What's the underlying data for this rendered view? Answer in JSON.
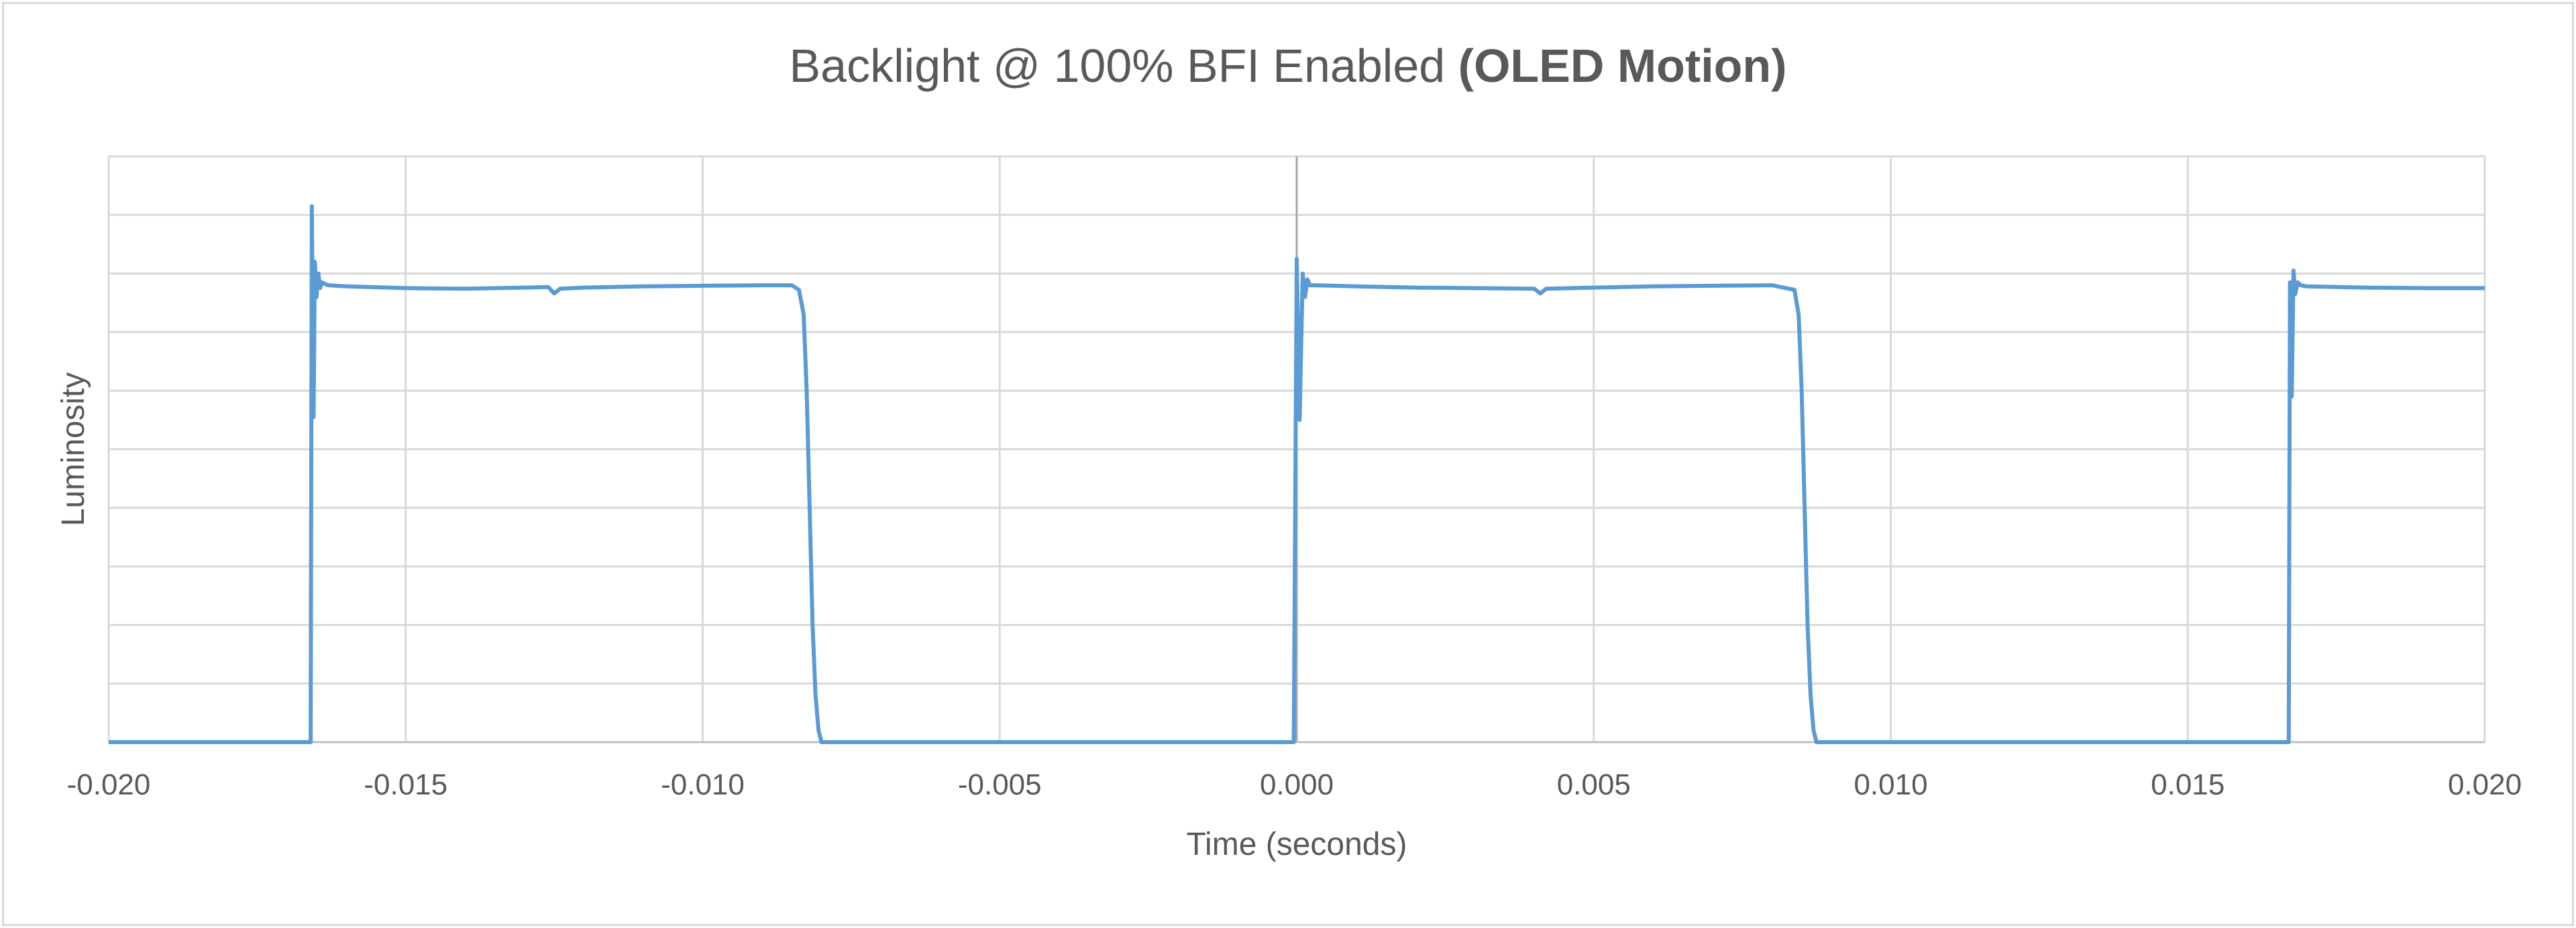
{
  "chart_data": {
    "type": "line",
    "title": "Backlight @ 100% BFI Enabled",
    "title_bold": "(OLED Motion)",
    "xlabel": "Time (seconds)",
    "ylabel": "Luminosity",
    "xlim": [
      -0.02,
      0.02
    ],
    "ylim": [
      0,
      10
    ],
    "x_ticks": [
      "-0.020",
      "-0.015",
      "-0.010",
      "-0.005",
      "0.000",
      "0.005",
      "0.010",
      "0.015",
      "0.020"
    ],
    "grid": true,
    "legend": "none",
    "series": [
      {
        "color": "#5b9bd5",
        "x": [
          -0.02,
          -0.0166,
          -0.01658,
          -0.01655,
          -0.01653,
          -0.0165,
          -0.01647,
          -0.01644,
          -0.01641,
          -0.01636,
          -0.0163,
          -0.016,
          -0.015,
          -0.014,
          -0.013,
          -0.0126,
          -0.0125,
          -0.0124,
          -0.012,
          -0.011,
          -0.01,
          -0.009,
          -0.0085,
          -0.00838,
          -0.0083,
          -0.00825,
          -0.0082,
          -0.00815,
          -0.0081,
          -0.00805,
          -0.008,
          -0.007,
          -0.006,
          -0.005,
          -0.004,
          -0.003,
          -0.002,
          -0.001,
          -5e-05,
          0.0,
          5e-05,
          0.0001,
          0.00014,
          0.00018,
          0.00022,
          0.0003,
          0.001,
          0.002,
          0.003,
          0.004,
          0.0041,
          0.0042,
          0.005,
          0.006,
          0.007,
          0.008,
          0.00838,
          0.00845,
          0.0085,
          0.00855,
          0.0086,
          0.00865,
          0.0087,
          0.00875,
          0.009,
          0.01,
          0.011,
          0.012,
          0.013,
          0.014,
          0.015,
          0.016,
          0.0167,
          0.01672,
          0.01675,
          0.01678,
          0.01681,
          0.01685,
          0.0169,
          0.017,
          0.018,
          0.019,
          0.02
        ],
        "y": [
          0.0,
          0.0,
          9.15,
          5.55,
          8.2,
          7.6,
          8.0,
          7.75,
          7.85,
          7.82,
          7.8,
          7.78,
          7.75,
          7.74,
          7.76,
          7.77,
          7.66,
          7.74,
          7.76,
          7.78,
          7.79,
          7.8,
          7.8,
          7.72,
          7.3,
          6.0,
          4.0,
          2.0,
          0.8,
          0.2,
          0.0,
          0.0,
          0.0,
          0.0,
          0.0,
          0.0,
          0.0,
          0.0,
          0.0,
          8.25,
          5.5,
          8.0,
          7.6,
          7.9,
          7.8,
          7.8,
          7.78,
          7.76,
          7.75,
          7.74,
          7.66,
          7.74,
          7.76,
          7.78,
          7.79,
          7.8,
          7.72,
          7.3,
          6.0,
          4.0,
          2.0,
          0.8,
          0.2,
          0.0,
          0.0,
          0.0,
          0.0,
          0.0,
          0.0,
          0.0,
          0.0,
          0.0,
          0.0,
          7.85,
          5.9,
          8.05,
          7.65,
          7.85,
          7.8,
          7.78,
          7.76,
          7.75,
          7.75
        ]
      }
    ]
  }
}
